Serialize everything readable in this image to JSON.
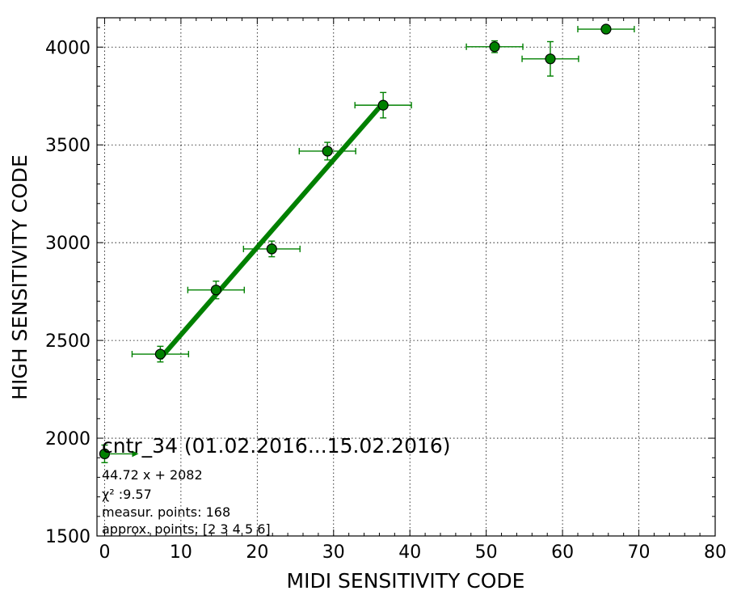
{
  "chart_data": {
    "type": "scatter",
    "xlabel": "MIDI SENSITIVITY CODE",
    "ylabel": "HIGH SENSITIVITY CODE",
    "xlim": [
      -1,
      80
    ],
    "ylim": [
      1500,
      4150
    ],
    "x_ticks": [
      0,
      10,
      20,
      30,
      40,
      50,
      60,
      70,
      80
    ],
    "y_ticks": [
      1500,
      2000,
      2500,
      3000,
      3500,
      4000
    ],
    "grid": true,
    "points": [
      {
        "x": 0.0,
        "y": 1920,
        "xerr": 0,
        "yerr": 45
      },
      {
        "x": 7.3,
        "y": 2430,
        "xerr": 3.7,
        "yerr": 40
      },
      {
        "x": 14.6,
        "y": 2758,
        "xerr": 3.7,
        "yerr": 45
      },
      {
        "x": 21.9,
        "y": 2968,
        "xerr": 3.7,
        "yerr": 40
      },
      {
        "x": 29.2,
        "y": 3468,
        "xerr": 3.7,
        "yerr": 45
      },
      {
        "x": 36.5,
        "y": 3703,
        "xerr": 3.7,
        "yerr": 65
      },
      {
        "x": 51.1,
        "y": 4002,
        "xerr": 3.7,
        "yerr": 30
      },
      {
        "x": 58.4,
        "y": 3940,
        "xerr": 3.7,
        "yerr": 88
      },
      {
        "x": 65.7,
        "y": 4092,
        "xerr": 3.7,
        "yerr": 10
      }
    ],
    "fit": {
      "slope": 44.72,
      "intercept": 2082,
      "x_range": [
        7.3,
        36.5
      ]
    },
    "colors": {
      "series": "#008000",
      "marker_fill": "#008000",
      "marker_edge": "#000000",
      "grid": "#000000"
    },
    "annotation": {
      "title": "cntr_34 (01.02.2016...15.02.2016)",
      "equation": "44.72 x + 2082",
      "chi2": "χ² :9.57",
      "measur_points": "measur. points: 168",
      "approx_points": "approx. points: [2 3 4 5 6]"
    }
  }
}
